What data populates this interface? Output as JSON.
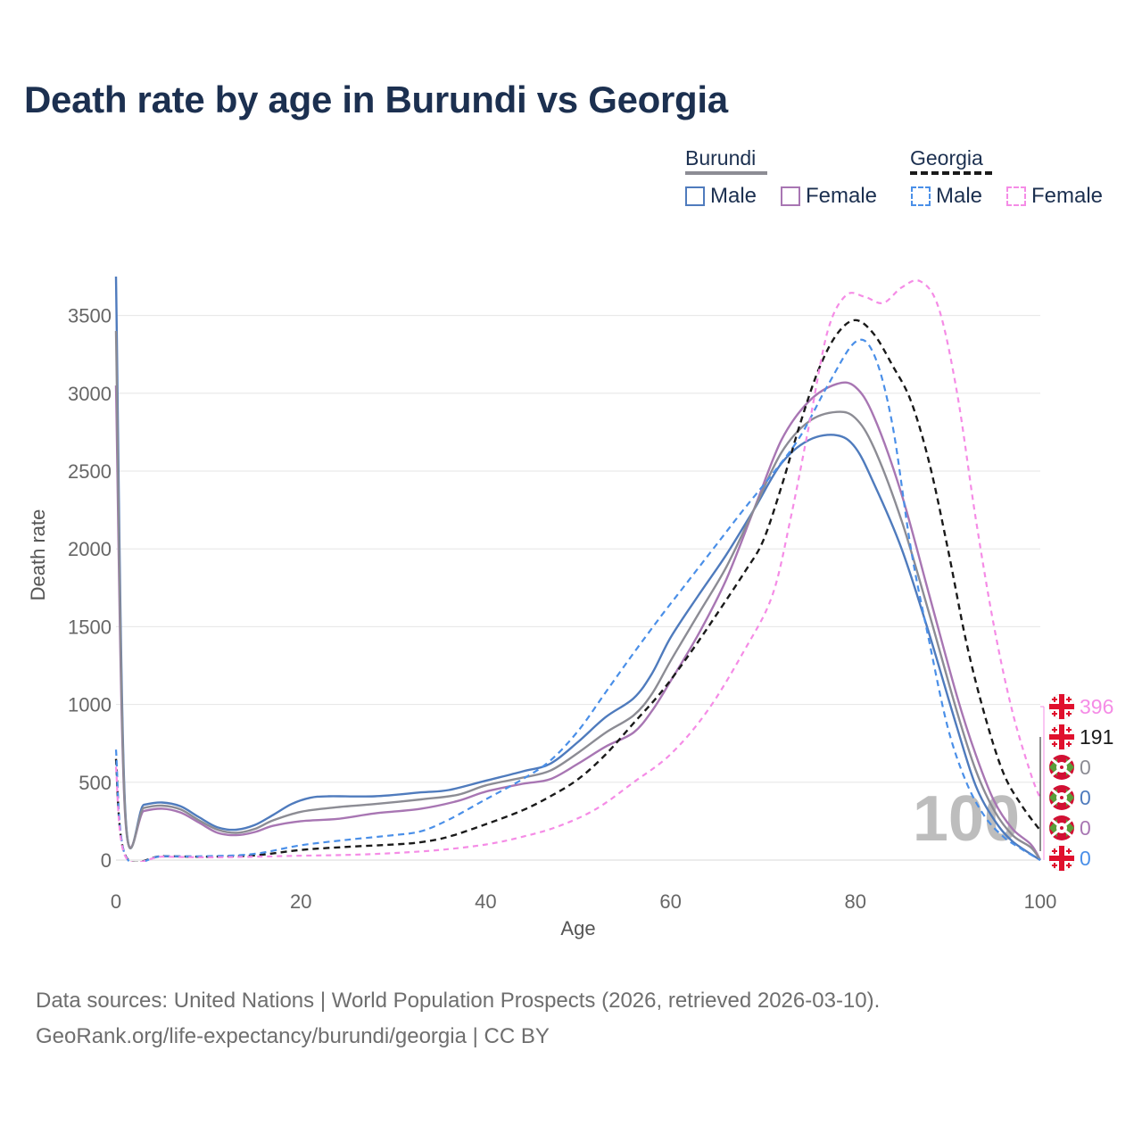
{
  "title": "Death rate by age in Burundi vs Georgia",
  "legend": {
    "groups": [
      {
        "name": "Burundi",
        "line_color": "#8c8c94",
        "line_style": "solid",
        "items": [
          {
            "label": "Male",
            "color": "#4f7bbd",
            "style": "solid"
          },
          {
            "label": "Female",
            "color": "#a876b3",
            "style": "solid"
          }
        ]
      },
      {
        "name": "Georgia",
        "line_color": "#1a1a1a",
        "line_style": "dashed",
        "items": [
          {
            "label": "Male",
            "color": "#4a8fe8",
            "style": "dashed"
          },
          {
            "label": "Female",
            "color": "#f58ce6",
            "style": "dashed"
          }
        ]
      }
    ]
  },
  "chart_data": {
    "type": "line",
    "title": "Death rate by age in Burundi vs Georgia",
    "xlabel": "Age",
    "ylabel": "Death rate",
    "xlim": [
      0,
      100
    ],
    "ylim": [
      0,
      3750
    ],
    "xticks": [
      0,
      20,
      40,
      60,
      80,
      100
    ],
    "yticks": [
      0,
      500,
      1000,
      1500,
      2000,
      2500,
      3000,
      3500
    ],
    "grid": true,
    "watermark": "100",
    "series": [
      {
        "name": "Burundi Male",
        "color": "#4f7bbd",
        "dash": "none",
        "width": 2.4,
        "points": [
          [
            0,
            3750
          ],
          [
            1,
            320
          ],
          [
            3,
            355
          ],
          [
            5,
            370
          ],
          [
            7,
            345
          ],
          [
            9,
            275
          ],
          [
            11,
            210
          ],
          [
            13,
            195
          ],
          [
            15,
            225
          ],
          [
            17,
            290
          ],
          [
            19,
            360
          ],
          [
            21,
            400
          ],
          [
            23,
            410
          ],
          [
            28,
            410
          ],
          [
            33,
            435
          ],
          [
            36,
            450
          ],
          [
            40,
            510
          ],
          [
            44,
            570
          ],
          [
            47,
            620
          ],
          [
            50,
            760
          ],
          [
            53,
            920
          ],
          [
            56,
            1040
          ],
          [
            58,
            1200
          ],
          [
            60,
            1430
          ],
          [
            63,
            1700
          ],
          [
            66,
            1960
          ],
          [
            69,
            2250
          ],
          [
            72,
            2550
          ],
          [
            75,
            2700
          ],
          [
            78,
            2730
          ],
          [
            80,
            2650
          ],
          [
            82,
            2420
          ],
          [
            85,
            2000
          ],
          [
            88,
            1450
          ],
          [
            91,
            850
          ],
          [
            93,
            480
          ],
          [
            95,
            260
          ],
          [
            97,
            120
          ],
          [
            100,
            0
          ]
        ]
      },
      {
        "name": "Burundi Female",
        "color": "#a876b3",
        "dash": "none",
        "width": 2.4,
        "points": [
          [
            0,
            3050
          ],
          [
            1,
            275
          ],
          [
            3,
            315
          ],
          [
            5,
            330
          ],
          [
            7,
            305
          ],
          [
            9,
            240
          ],
          [
            11,
            175
          ],
          [
            13,
            160
          ],
          [
            15,
            180
          ],
          [
            17,
            220
          ],
          [
            20,
            250
          ],
          [
            24,
            265
          ],
          [
            28,
            300
          ],
          [
            33,
            330
          ],
          [
            37,
            380
          ],
          [
            40,
            440
          ],
          [
            44,
            490
          ],
          [
            47,
            520
          ],
          [
            50,
            620
          ],
          [
            53,
            730
          ],
          [
            56,
            820
          ],
          [
            58,
            960
          ],
          [
            60,
            1150
          ],
          [
            63,
            1450
          ],
          [
            66,
            1800
          ],
          [
            69,
            2250
          ],
          [
            72,
            2700
          ],
          [
            75,
            2950
          ],
          [
            78,
            3060
          ],
          [
            80,
            3040
          ],
          [
            82,
            2850
          ],
          [
            85,
            2350
          ],
          [
            88,
            1700
          ],
          [
            91,
            1050
          ],
          [
            93,
            680
          ],
          [
            95,
            380
          ],
          [
            97,
            200
          ],
          [
            99,
            100
          ],
          [
            100,
            0
          ]
        ]
      },
      {
        "name": "Burundi",
        "color": "#8c8c94",
        "dash": "none",
        "width": 2.4,
        "points": [
          [
            0,
            3400
          ],
          [
            1,
            295
          ],
          [
            3,
            335
          ],
          [
            5,
            350
          ],
          [
            7,
            325
          ],
          [
            9,
            255
          ],
          [
            11,
            195
          ],
          [
            13,
            175
          ],
          [
            15,
            200
          ],
          [
            17,
            255
          ],
          [
            20,
            310
          ],
          [
            24,
            340
          ],
          [
            28,
            360
          ],
          [
            33,
            390
          ],
          [
            37,
            420
          ],
          [
            40,
            480
          ],
          [
            44,
            530
          ],
          [
            47,
            575
          ],
          [
            50,
            690
          ],
          [
            53,
            820
          ],
          [
            56,
            930
          ],
          [
            58,
            1070
          ],
          [
            60,
            1280
          ],
          [
            63,
            1580
          ],
          [
            66,
            1880
          ],
          [
            69,
            2250
          ],
          [
            72,
            2620
          ],
          [
            75,
            2820
          ],
          [
            78,
            2880
          ],
          [
            80,
            2840
          ],
          [
            82,
            2650
          ],
          [
            85,
            2180
          ],
          [
            88,
            1580
          ],
          [
            91,
            950
          ],
          [
            93,
            580
          ],
          [
            95,
            320
          ],
          [
            97,
            160
          ],
          [
            99,
            80
          ],
          [
            100,
            0
          ]
        ]
      },
      {
        "name": "Georgia",
        "color": "#1a1a1a",
        "dash": "7,5",
        "width": 2.4,
        "points": [
          [
            0,
            650
          ],
          [
            1,
            30
          ],
          [
            5,
            25
          ],
          [
            10,
            22
          ],
          [
            15,
            30
          ],
          [
            20,
            65
          ],
          [
            25,
            85
          ],
          [
            30,
            100
          ],
          [
            33,
            115
          ],
          [
            36,
            150
          ],
          [
            40,
            230
          ],
          [
            44,
            320
          ],
          [
            47,
            410
          ],
          [
            50,
            520
          ],
          [
            53,
            680
          ],
          [
            56,
            880
          ],
          [
            59,
            1080
          ],
          [
            62,
            1320
          ],
          [
            65,
            1580
          ],
          [
            68,
            1850
          ],
          [
            70,
            2050
          ],
          [
            72,
            2400
          ],
          [
            74,
            2800
          ],
          [
            76,
            3150
          ],
          [
            78,
            3380
          ],
          [
            80,
            3470
          ],
          [
            82,
            3380
          ],
          [
            84,
            3180
          ],
          [
            86,
            2950
          ],
          [
            88,
            2550
          ],
          [
            90,
            2000
          ],
          [
            92,
            1400
          ],
          [
            94,
            930
          ],
          [
            96,
            560
          ],
          [
            98,
            350
          ],
          [
            100,
            190
          ]
        ]
      },
      {
        "name": "Georgia Male",
        "color": "#4a8fe8",
        "dash": "7,5",
        "width": 2.2,
        "points": [
          [
            0,
            710
          ],
          [
            1,
            30
          ],
          [
            5,
            25
          ],
          [
            10,
            25
          ],
          [
            15,
            40
          ],
          [
            20,
            95
          ],
          [
            25,
            130
          ],
          [
            30,
            160
          ],
          [
            33,
            185
          ],
          [
            36,
            260
          ],
          [
            40,
            390
          ],
          [
            44,
            520
          ],
          [
            47,
            640
          ],
          [
            50,
            830
          ],
          [
            53,
            1080
          ],
          [
            56,
            1330
          ],
          [
            59,
            1570
          ],
          [
            62,
            1800
          ],
          [
            65,
            2030
          ],
          [
            68,
            2260
          ],
          [
            71,
            2480
          ],
          [
            74,
            2720
          ],
          [
            77,
            3050
          ],
          [
            80,
            3330
          ],
          [
            82,
            3250
          ],
          [
            84,
            2800
          ],
          [
            86,
            2000
          ],
          [
            88,
            1400
          ],
          [
            90,
            850
          ],
          [
            92,
            500
          ],
          [
            94,
            280
          ],
          [
            96,
            150
          ],
          [
            98,
            70
          ],
          [
            100,
            0
          ]
        ]
      },
      {
        "name": "Georgia Female",
        "color": "#f58ce6",
        "dash": "6,5",
        "width": 2.2,
        "points": [
          [
            0,
            600
          ],
          [
            1,
            25
          ],
          [
            5,
            22
          ],
          [
            10,
            18
          ],
          [
            15,
            22
          ],
          [
            20,
            28
          ],
          [
            25,
            33
          ],
          [
            30,
            45
          ],
          [
            35,
            65
          ],
          [
            40,
            100
          ],
          [
            44,
            150
          ],
          [
            48,
            220
          ],
          [
            52,
            330
          ],
          [
            56,
            500
          ],
          [
            60,
            680
          ],
          [
            64,
            960
          ],
          [
            68,
            1350
          ],
          [
            71,
            1700
          ],
          [
            73,
            2200
          ],
          [
            75,
            2800
          ],
          [
            77,
            3400
          ],
          [
            79,
            3630
          ],
          [
            81,
            3620
          ],
          [
            83,
            3580
          ],
          [
            85,
            3680
          ],
          [
            87,
            3720
          ],
          [
            89,
            3550
          ],
          [
            91,
            3000
          ],
          [
            93,
            2200
          ],
          [
            95,
            1500
          ],
          [
            97,
            950
          ],
          [
            99,
            550
          ],
          [
            100,
            396
          ]
        ]
      }
    ],
    "end_labels": [
      {
        "value": "396",
        "color": "#f58ce6",
        "flag": "georgia"
      },
      {
        "value": "191",
        "color": "#1a1a1a",
        "flag": "georgia"
      },
      {
        "value": "0",
        "color": "#8c8c94",
        "flag": "burundi"
      },
      {
        "value": "0",
        "color": "#4f7bbd",
        "flag": "burundi"
      },
      {
        "value": "0",
        "color": "#a876b3",
        "flag": "burundi"
      },
      {
        "value": "0",
        "color": "#4a8fe8",
        "flag": "georgia"
      }
    ]
  },
  "footer": {
    "line1": "Data sources: United Nations | World Population Prospects (2026, retrieved 2026-03-10).",
    "line2": "GeoRank.org/life-expectancy/burundi/georgia | CC BY"
  }
}
